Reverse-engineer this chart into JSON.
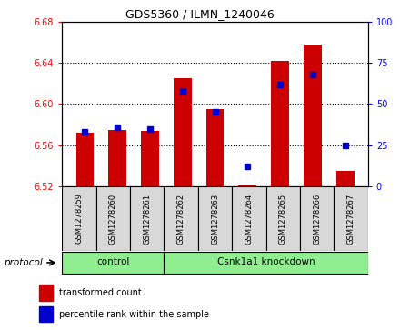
{
  "title": "GDS5360 / ILMN_1240046",
  "samples": [
    "GSM1278259",
    "GSM1278260",
    "GSM1278261",
    "GSM1278262",
    "GSM1278263",
    "GSM1278264",
    "GSM1278265",
    "GSM1278266",
    "GSM1278267"
  ],
  "transformed_count": [
    6.572,
    6.575,
    6.574,
    6.625,
    6.595,
    6.521,
    6.642,
    6.658,
    6.535
  ],
  "percentile_rank": [
    33,
    36,
    35,
    58,
    45,
    12,
    62,
    68,
    25
  ],
  "bar_bottom": 6.52,
  "ylim_left": [
    6.52,
    6.68
  ],
  "ylim_right": [
    0,
    100
  ],
  "yticks_left": [
    6.52,
    6.56,
    6.6,
    6.64,
    6.68
  ],
  "yticks_right": [
    0,
    25,
    50,
    75,
    100
  ],
  "bar_color": "#cc0000",
  "dot_color": "#0000cc",
  "cell_bg": "#d8d8d8",
  "plot_bg": "#ffffff",
  "group_color": "#90ee90",
  "groups": [
    {
      "label": "control",
      "start": 0,
      "end": 3
    },
    {
      "label": "Csnk1a1 knockdown",
      "start": 3,
      "end": 9
    }
  ],
  "protocol_label": "protocol",
  "legend_items": [
    {
      "label": "transformed count",
      "color": "#cc0000"
    },
    {
      "label": "percentile rank within the sample",
      "color": "#0000cc"
    }
  ]
}
